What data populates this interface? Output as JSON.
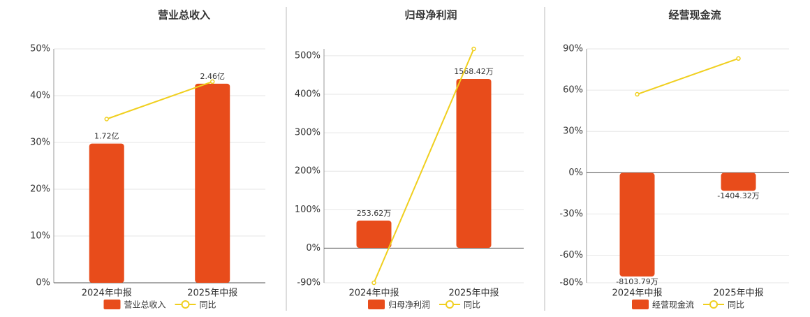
{
  "chart_data": [
    {
      "type": "bar",
      "title": "营业总收入",
      "categories": [
        "2024年中报",
        "2025年中报"
      ],
      "series": [
        {
          "name": "营业总收入",
          "color": "#e84c1b",
          "axis": "y2",
          "values": [
            1.72,
            2.46
          ],
          "value_labels": [
            "1.72亿",
            "2.46亿"
          ]
        },
        {
          "name": "同比",
          "type": "line",
          "color": "#f0cf1e",
          "values": [
            35,
            43
          ]
        }
      ],
      "ylim": [
        0,
        50
      ],
      "yticks": [
        {
          "value": 0,
          "label": "0%"
        },
        {
          "value": 10,
          "label": "10%"
        },
        {
          "value": 20,
          "label": "20%"
        },
        {
          "value": 30,
          "label": "30%"
        },
        {
          "value": 40,
          "label": "40%"
        },
        {
          "value": 50,
          "label": "50%"
        }
      ],
      "y2lim": [
        0,
        2.89
      ],
      "grid": true
    },
    {
      "type": "bar",
      "title": "归母净利润",
      "categories": [
        "2024年中报",
        "2025年中报"
      ],
      "series": [
        {
          "name": "归母净利润",
          "color": "#e84c1b",
          "axis": "y2",
          "values": [
            253.62,
            1568.42
          ],
          "value_labels": [
            "253.62万",
            "1568.42万"
          ]
        },
        {
          "name": "同比",
          "type": "line",
          "color": "#f0cf1e",
          "values": [
            -90,
            518
          ]
        }
      ],
      "ylim": [
        -90,
        518
      ],
      "yticks": [
        {
          "value": -90,
          "label": "-90%"
        },
        {
          "value": 0,
          "label": "0%"
        },
        {
          "value": 100,
          "label": "100%"
        },
        {
          "value": 200,
          "label": "200%"
        },
        {
          "value": 300,
          "label": "300%"
        },
        {
          "value": 400,
          "label": "400%"
        },
        {
          "value": 500,
          "label": "500%"
        }
      ],
      "y2lim": [
        -324,
        1847
      ],
      "grid": true
    },
    {
      "type": "bar",
      "title": "经营现金流",
      "categories": [
        "2024年中报",
        "2025年中报"
      ],
      "series": [
        {
          "name": "经营现金流",
          "color": "#e84c1b",
          "axis": "y2",
          "values": [
            -8103.79,
            -1404.32
          ],
          "value_labels": [
            "-8103.79万",
            "-1404.32万"
          ]
        },
        {
          "name": "同比",
          "type": "line",
          "color": "#f0cf1e",
          "values": [
            57,
            83
          ]
        }
      ],
      "ylim": [
        -80,
        90
      ],
      "yticks": [
        {
          "value": -80,
          "label": "-80%"
        },
        {
          "value": -60,
          "label": "-60%"
        },
        {
          "value": -30,
          "label": "-30%"
        },
        {
          "value": 0,
          "label": "0%"
        },
        {
          "value": 30,
          "label": "30%"
        },
        {
          "value": 60,
          "label": "60%"
        },
        {
          "value": 90,
          "label": "90%"
        }
      ],
      "y2lim": [
        -8598,
        9693
      ],
      "grid": true
    }
  ]
}
